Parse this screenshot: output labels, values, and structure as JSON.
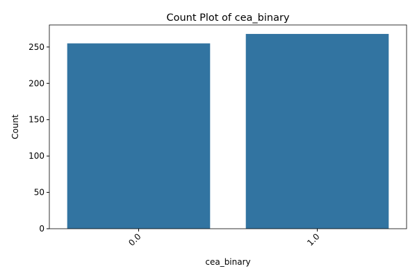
{
  "chart_data": {
    "type": "bar",
    "title": "Count Plot of cea_binary",
    "xlabel": "cea_binary",
    "ylabel": "Count",
    "categories": [
      "0.0",
      "1.0"
    ],
    "values": [
      255,
      268
    ],
    "ylim": [
      0,
      280.35
    ],
    "yticks": [
      0,
      50,
      100,
      150,
      200,
      250
    ],
    "bar_color": "#3274a1",
    "grid": false,
    "legend": "none",
    "x_tick_rotation_deg": 45
  }
}
